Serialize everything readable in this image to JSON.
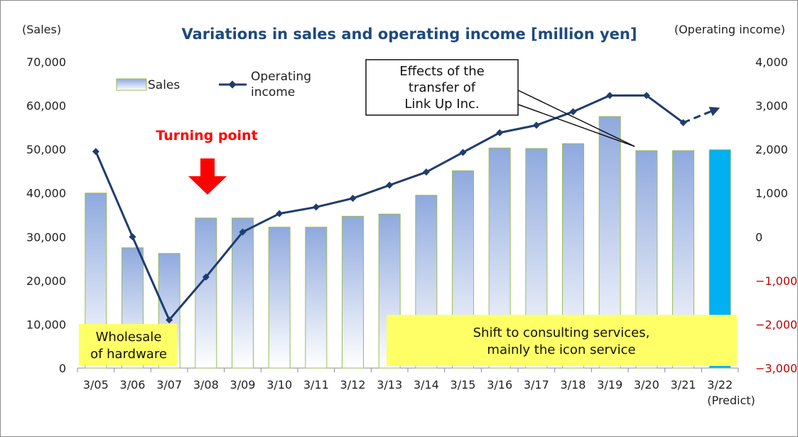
{
  "chart_data": {
    "type": "bar+line",
    "title": "Variations in sales and operating income [million yen]",
    "y_left_label": "(Sales)",
    "y_right_label": "(Operating income)",
    "categories": [
      "3/05",
      "3/06",
      "3/07",
      "3/08",
      "3/09",
      "3/10",
      "3/11",
      "3/12",
      "3/13",
      "3/14",
      "3/15",
      "3/16",
      "3/17",
      "3/18",
      "3/19",
      "3/20",
      "3/21",
      "3/22"
    ],
    "predict_label": "(Predict)",
    "y_left": {
      "min": 0,
      "max": 70000,
      "ticks": [
        "0",
        "10,000",
        "20,000",
        "30,000",
        "40,000",
        "50,000",
        "60,000",
        "70,000"
      ]
    },
    "y_right": {
      "min": -3000,
      "max": 4000,
      "ticks": [
        "−3,000",
        "−2,000",
        "−1,000",
        "0",
        "1,000",
        "2,000",
        "3,000",
        "4,000"
      ]
    },
    "series": [
      {
        "name": "Sales",
        "kind": "bar",
        "axis": "left",
        "values": [
          40000,
          27500,
          26200,
          34300,
          34300,
          32200,
          32200,
          34700,
          35200,
          39500,
          45100,
          50300,
          50200,
          51300,
          57500,
          49700,
          49700,
          49900
        ]
      },
      {
        "name": "Operating income",
        "kind": "line",
        "axis": "right",
        "values": [
          1950,
          0,
          -1900,
          -920,
          110,
          530,
          680,
          880,
          1180,
          1480,
          1930,
          2380,
          2550,
          2860,
          3230,
          3230,
          2610,
          2950
        ],
        "predicted_last_segment": true
      }
    ],
    "colors": {
      "bar_top": "#8fa9de",
      "bar_bottom": "#ffffff",
      "bar_border": "#9bbb59",
      "bar_highlight": "#00b0f0",
      "line": "#1f3d6d",
      "negative_ticks": "#c00000",
      "arrow": "#ff0000",
      "highlight_box": "#ffff66"
    },
    "legend": {
      "position": "top-left",
      "sales": "Sales",
      "income": [
        "Operating",
        "income"
      ]
    },
    "annotations": {
      "turning_point": "Turning point",
      "transfer": [
        "Effects of the",
        "transfer of",
        "Link Up Inc."
      ],
      "wholesale": [
        "Wholesale",
        "of hardware"
      ],
      "shift": [
        "Shift to consulting services,",
        "mainly the icon service"
      ]
    }
  }
}
